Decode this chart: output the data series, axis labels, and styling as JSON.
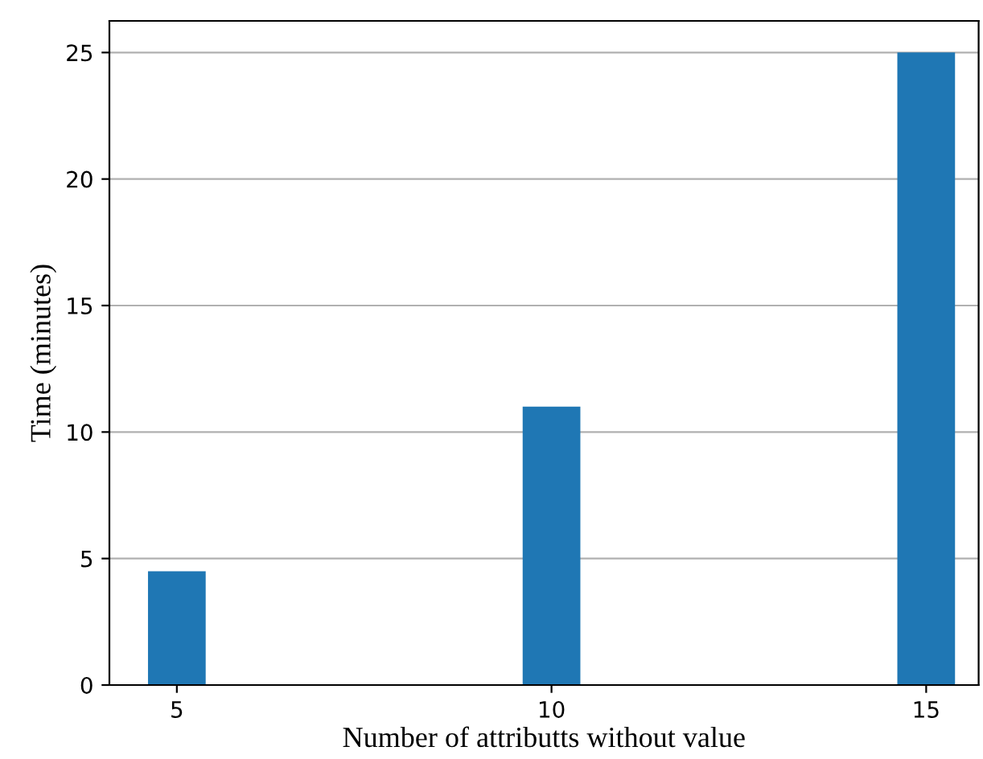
{
  "chart_data": {
    "type": "bar",
    "xlabel": "Number of attributts without value",
    "ylabel": "Time (minutes)",
    "x": [
      5,
      10,
      15
    ],
    "values": [
      4.5,
      11,
      25
    ],
    "color": "#1f77b4",
    "xlim": [
      4.1,
      15.7
    ],
    "xticks": [
      5,
      10,
      15
    ],
    "ylim": [
      0,
      26.25
    ],
    "yticks": [
      0,
      5,
      10,
      15,
      20,
      25
    ],
    "grid": "y"
  }
}
